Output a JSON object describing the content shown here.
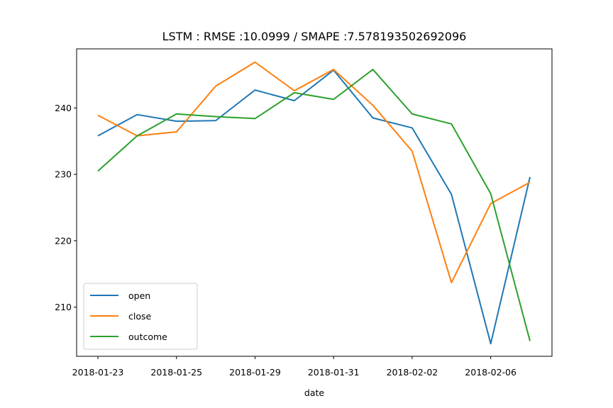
{
  "chart_data": {
    "type": "line",
    "title": "LSTM : RMSE :10.0999 / SMAPE :7.578193502692096",
    "xlabel": "date",
    "ylabel": "",
    "x_tick_labels": [
      "2018-01-23",
      "2018-01-25",
      "2018-01-29",
      "2018-01-31",
      "2018-02-02",
      "2018-02-06"
    ],
    "y_ticks": [
      210,
      220,
      230,
      240
    ],
    "ylim": [
      202.6,
      248.9
    ],
    "legend_position": "lower-left",
    "grid": false,
    "series": [
      {
        "name": "open",
        "color": "#1f77b4",
        "values": [
          235.8,
          239.0,
          238.0,
          238.1,
          242.7,
          241.1,
          245.7,
          238.5,
          237.0,
          227.0,
          204.5,
          229.6
        ]
      },
      {
        "name": "close",
        "color": "#ff7f0e",
        "values": [
          238.9,
          235.8,
          236.4,
          243.3,
          246.9,
          242.6,
          245.8,
          240.4,
          233.5,
          213.7,
          225.6,
          228.8
        ]
      },
      {
        "name": "outcome",
        "color": "#2ca02c",
        "values": [
          230.5,
          235.8,
          239.1,
          238.7,
          238.4,
          242.3,
          241.3,
          245.8,
          239.1,
          237.6,
          227.1,
          204.9
        ]
      }
    ]
  }
}
